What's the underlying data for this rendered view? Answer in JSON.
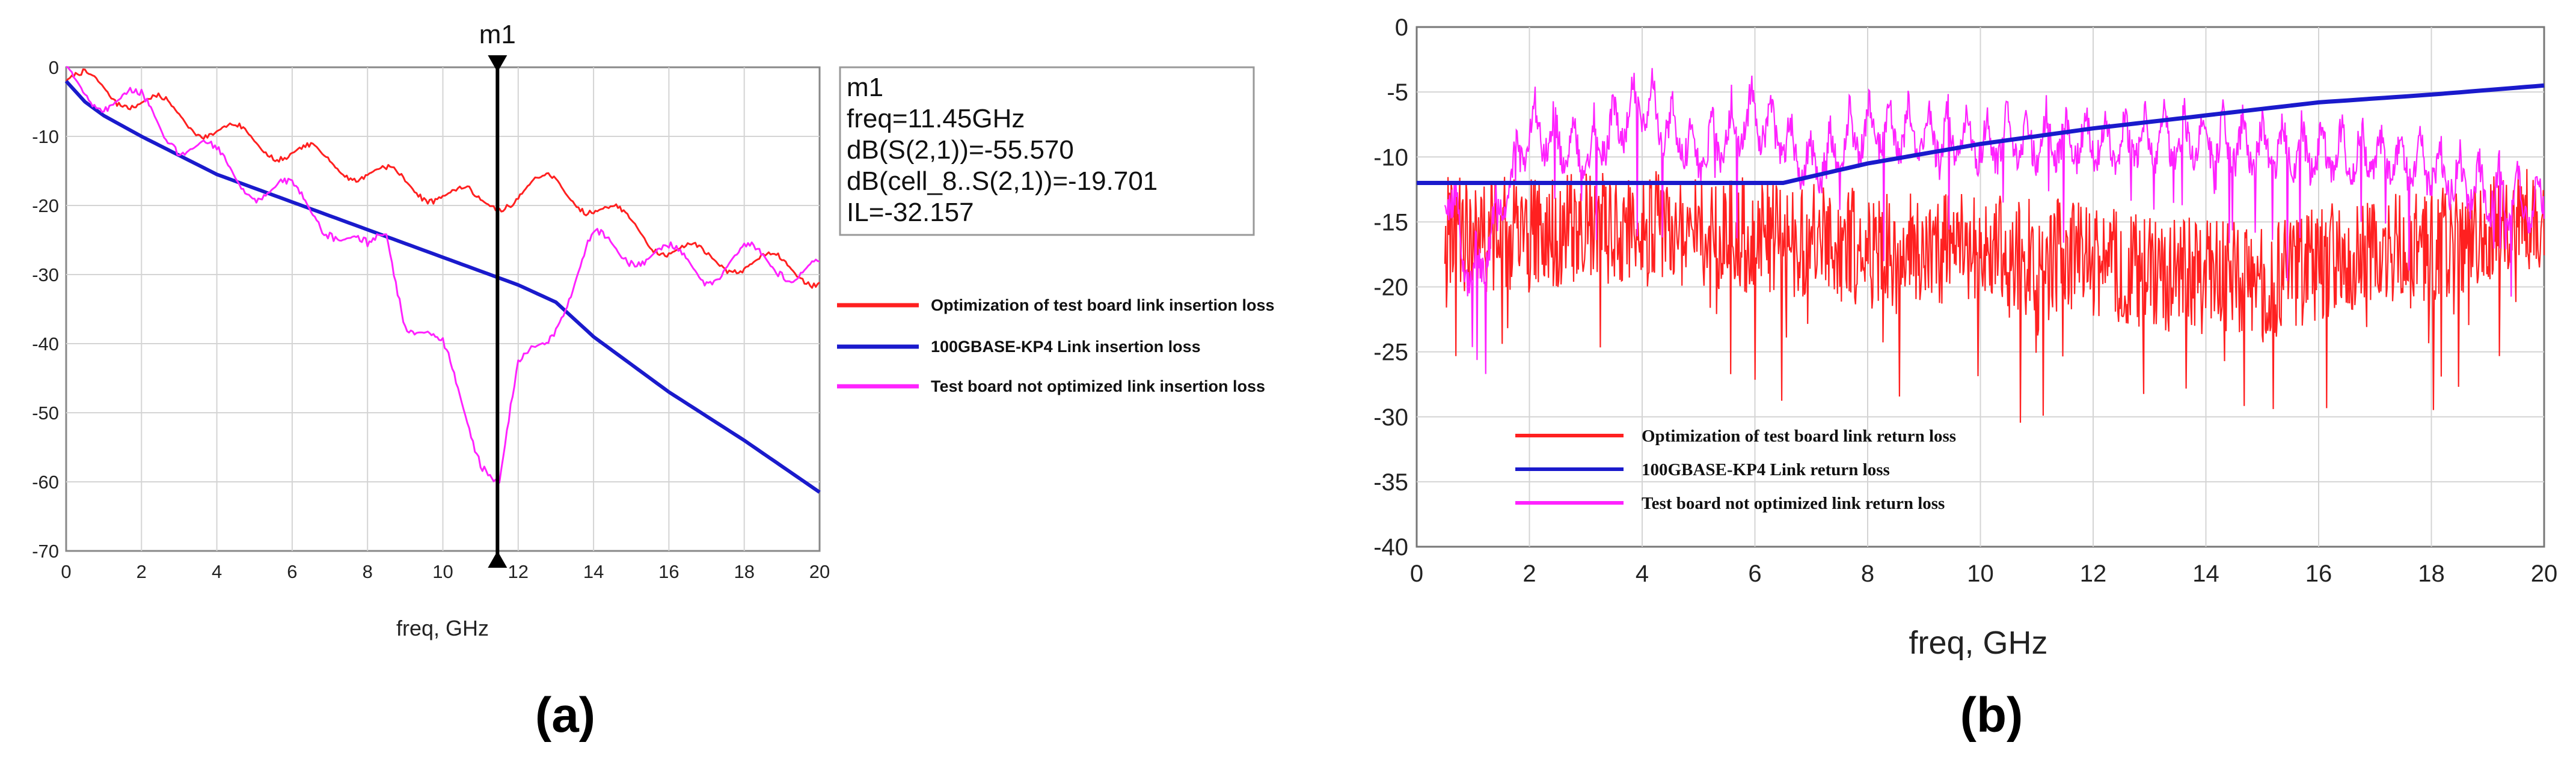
{
  "chart_data": [
    {
      "panel": "(a)",
      "type": "line",
      "xlabel": "freq, GHz",
      "ylabel": "",
      "xlim": [
        0,
        20
      ],
      "ylim": [
        -70,
        0
      ],
      "xticks": [
        "0",
        "2",
        "4",
        "6",
        "8",
        "10",
        "12",
        "14",
        "16",
        "18",
        "20"
      ],
      "yticks": [
        "0",
        "-10",
        "-20",
        "-30",
        "-40",
        "-50",
        "-60",
        "-70"
      ],
      "grid": true,
      "legend_position": "right",
      "marker": {
        "name": "m1",
        "x": 11.45,
        "lines": [
          "m1",
          "freq=11.45GHz",
          "dB(S(2,1))=-55.570",
          "dB(cell_8..S(2,1))=-19.701",
          "IL=-32.157"
        ]
      },
      "series": [
        {
          "name": "Optimization of test board link insertion loss",
          "color": "#ff2020",
          "x": [
            0,
            1,
            2,
            3,
            4,
            5,
            6,
            7,
            8,
            9,
            10,
            11,
            12,
            13,
            14,
            15,
            16,
            17,
            18,
            19,
            20
          ],
          "y": [
            -2,
            -3,
            -5,
            -7,
            -9,
            -11,
            -12,
            -14,
            -15,
            -17,
            -18,
            -20,
            -18,
            -17,
            -20,
            -23,
            -26,
            -28,
            -28,
            -29,
            -30
          ]
        },
        {
          "name": "100GBASE-KP4 Link insertion loss",
          "color": "#1a1acc",
          "x": [
            0,
            0.5,
            1,
            2,
            4,
            6,
            8,
            10,
            12,
            13,
            14,
            16,
            18,
            20
          ],
          "y": [
            -2,
            -5,
            -7,
            -10,
            -15.5,
            -19.5,
            -23.5,
            -27.5,
            -31.5,
            -34,
            -39,
            -47,
            -54,
            -61.5
          ]
        },
        {
          "name": "Test board not optimized link insertion loss",
          "color": "#ff22ff",
          "x": [
            0,
            1,
            2,
            3,
            4,
            5,
            6,
            7,
            8,
            8.5,
            9,
            10,
            11,
            11.5,
            12,
            13,
            14,
            15,
            16,
            17,
            18,
            19,
            20
          ],
          "y": [
            -2,
            -4,
            -6,
            -10,
            -14,
            -17,
            -19,
            -22,
            -28,
            -24,
            -35,
            -42,
            -55,
            -60,
            -45,
            -36,
            -26,
            -26,
            -28,
            -29,
            -28,
            -28,
            -30
          ]
        }
      ]
    },
    {
      "panel": "(b)",
      "type": "line",
      "xlabel": "freq, GHz",
      "ylabel": "",
      "xlim": [
        0,
        20
      ],
      "ylim": [
        -40,
        0
      ],
      "xticks": [
        "0",
        "2",
        "4",
        "6",
        "8",
        "10",
        "12",
        "14",
        "16",
        "18",
        "20"
      ],
      "yticks": [
        "0",
        "-5",
        "-10",
        "-15",
        "-20",
        "-25",
        "-30",
        "-35",
        "-40"
      ],
      "grid": true,
      "legend_position": "bottom-left",
      "series": [
        {
          "name": "Optimization of test board link return loss",
          "color": "#ff2020",
          "x": [
            0.5,
            2,
            4,
            6,
            8,
            10,
            12,
            13,
            14,
            15,
            16,
            18,
            20
          ],
          "y": [
            -16,
            -16,
            -15.5,
            -16,
            -17,
            -17,
            -18,
            -19,
            -19,
            -20,
            -18,
            -17,
            -14
          ]
        },
        {
          "name": "100GBASE-KP4 Link return loss",
          "color": "#1a1acc",
          "x": [
            0,
            6.5,
            8,
            10,
            12,
            14,
            16,
            18,
            20
          ],
          "y": [
            -12,
            -12,
            -10.5,
            -9,
            -7.8,
            -6.8,
            -5.8,
            -5.2,
            -4.5
          ]
        },
        {
          "name": "Test board not optimized link return loss",
          "color": "#ff22ff",
          "x": [
            0.5,
            1,
            2,
            3,
            4,
            5,
            6,
            7,
            8,
            10,
            12,
            14,
            16,
            17,
            18,
            19,
            20
          ],
          "y": [
            -10,
            -18,
            -6,
            -8,
            -4,
            -8,
            -5,
            -9,
            -6,
            -7,
            -7,
            -7,
            -8,
            -8,
            -9,
            -11,
            -12
          ]
        }
      ]
    }
  ]
}
